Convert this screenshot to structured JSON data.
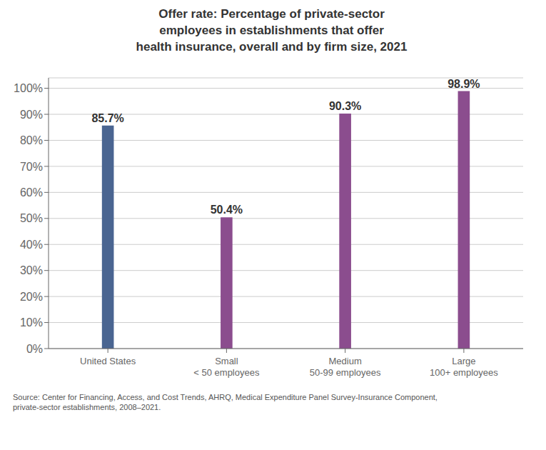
{
  "chart_data": {
    "type": "bar",
    "title": "Offer rate: Percentage of private-sector\nemployees in establishments that offer\nhealth insurance, overall and by firm size, 2021",
    "categories": [
      "United States",
      "Small\n< 50 employees",
      "Medium\n50-99 employees",
      "Large\n100+ employees"
    ],
    "values": [
      85.7,
      50.4,
      90.3,
      98.9
    ],
    "value_labels": [
      "85.7%",
      "50.4%",
      "90.3%",
      "98.9%"
    ],
    "data_labels": true,
    "colors": [
      "#4a6591",
      "#8b4d8e",
      "#8b4d8e",
      "#8b4d8e"
    ],
    "ylim": [
      0,
      104
    ],
    "yticks": [
      {
        "value": 0,
        "label": "0%"
      },
      {
        "value": 10,
        "label": "10%"
      },
      {
        "value": 20,
        "label": "20%"
      },
      {
        "value": 30,
        "label": "30%"
      },
      {
        "value": 40,
        "label": "40%"
      },
      {
        "value": 50,
        "label": "50%"
      },
      {
        "value": 60,
        "label": "60%"
      },
      {
        "value": 70,
        "label": "70%"
      },
      {
        "value": 80,
        "label": "80%"
      },
      {
        "value": 90,
        "label": "90%"
      },
      {
        "value": 100,
        "label": "100%"
      }
    ],
    "grid": true,
    "annotations": [
      "Source: Center for Financing, Access, and Cost Trends, AHRQ, Medical Expenditure Panel Survey-Insurance Component,\nprivate-sector establishments, 2008–2021."
    ]
  }
}
